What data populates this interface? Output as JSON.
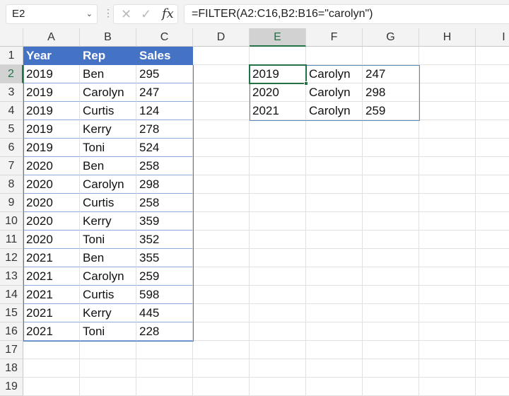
{
  "namebox": "E2",
  "formula": "=FILTER(A2:C16,B2:B16=\"carolyn\")",
  "columns": [
    "A",
    "B",
    "C",
    "D",
    "E",
    "F",
    "G",
    "H",
    "I"
  ],
  "rows": [
    "1",
    "2",
    "3",
    "4",
    "5",
    "6",
    "7",
    "8",
    "9",
    "10",
    "11",
    "12",
    "13",
    "14",
    "15",
    "16",
    "17",
    "18",
    "19"
  ],
  "table": {
    "headers": [
      "Year",
      "Rep",
      "Sales"
    ],
    "data": [
      [
        "2019",
        "Ben",
        "295"
      ],
      [
        "2019",
        "Carolyn",
        "247"
      ],
      [
        "2019",
        "Curtis",
        "124"
      ],
      [
        "2019",
        "Kerry",
        "278"
      ],
      [
        "2019",
        "Toni",
        "524"
      ],
      [
        "2020",
        "Ben",
        "258"
      ],
      [
        "2020",
        "Carolyn",
        "298"
      ],
      [
        "2020",
        "Curtis",
        "258"
      ],
      [
        "2020",
        "Kerry",
        "359"
      ],
      [
        "2020",
        "Toni",
        "352"
      ],
      [
        "2021",
        "Ben",
        "355"
      ],
      [
        "2021",
        "Carolyn",
        "259"
      ],
      [
        "2021",
        "Curtis",
        "598"
      ],
      [
        "2021",
        "Kerry",
        "445"
      ],
      [
        "2021",
        "Toni",
        "228"
      ]
    ]
  },
  "spill": [
    [
      "2019",
      "Carolyn",
      "247"
    ],
    [
      "2020",
      "Carolyn",
      "298"
    ],
    [
      "2021",
      "Carolyn",
      "259"
    ]
  ],
  "colors": {
    "table_header": "#4472C4",
    "selection": "#217346",
    "spill_border": "#5B8DB8"
  }
}
